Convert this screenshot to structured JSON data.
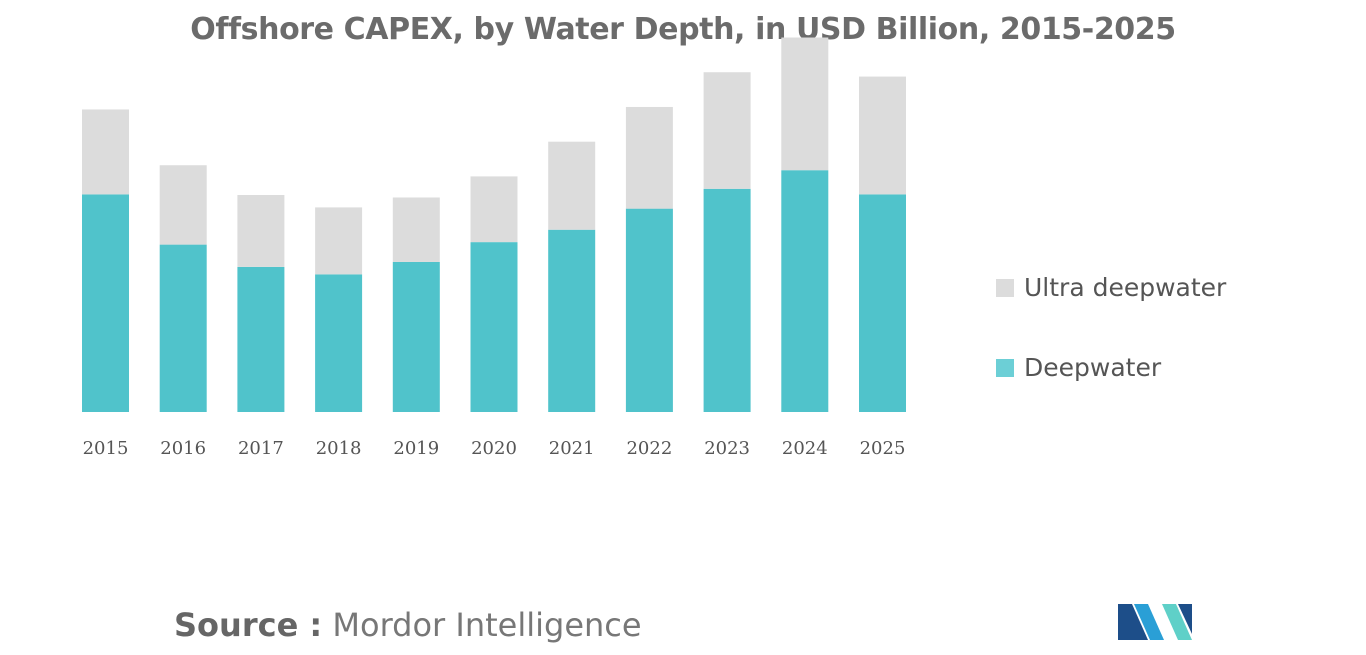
{
  "chart_data": {
    "type": "bar",
    "stacked": true,
    "title": "Offshore CAPEX, by Water Depth, in USD Billion, 2015-2025",
    "categories": [
      "2015",
      "2016",
      "2017",
      "2018",
      "2019",
      "2020",
      "2021",
      "2022",
      "2023",
      "2024",
      "2025"
    ],
    "series": [
      {
        "name": "Deepwater",
        "color": "#50c3cb",
        "values": [
          35.1,
          27.0,
          23.4,
          22.2,
          24.2,
          27.4,
          29.4,
          32.8,
          36.0,
          39.0,
          35.1
        ]
      },
      {
        "name": "Ultra deepwater",
        "color": "#dcdcdc",
        "values": [
          13.7,
          12.8,
          11.6,
          10.8,
          10.4,
          10.6,
          14.2,
          16.4,
          18.8,
          21.4,
          19.0
        ]
      }
    ],
    "ylim": [
      0,
      65
    ],
    "xlabel": "",
    "ylabel": "",
    "grid": false,
    "legend_position": "right",
    "legend": [
      {
        "label": "Ultra deepwater",
        "color": "#dcdcdc"
      },
      {
        "label": "Deepwater",
        "color": "#6ccfd6"
      }
    ]
  },
  "source": {
    "prefix": "Source :",
    "text": "Mordor Intelligence"
  },
  "logo": {
    "icon": "mordor-intelligence-logo",
    "colors": [
      "#1d4e89",
      "#2a9fd6",
      "#5fd0c8"
    ]
  }
}
